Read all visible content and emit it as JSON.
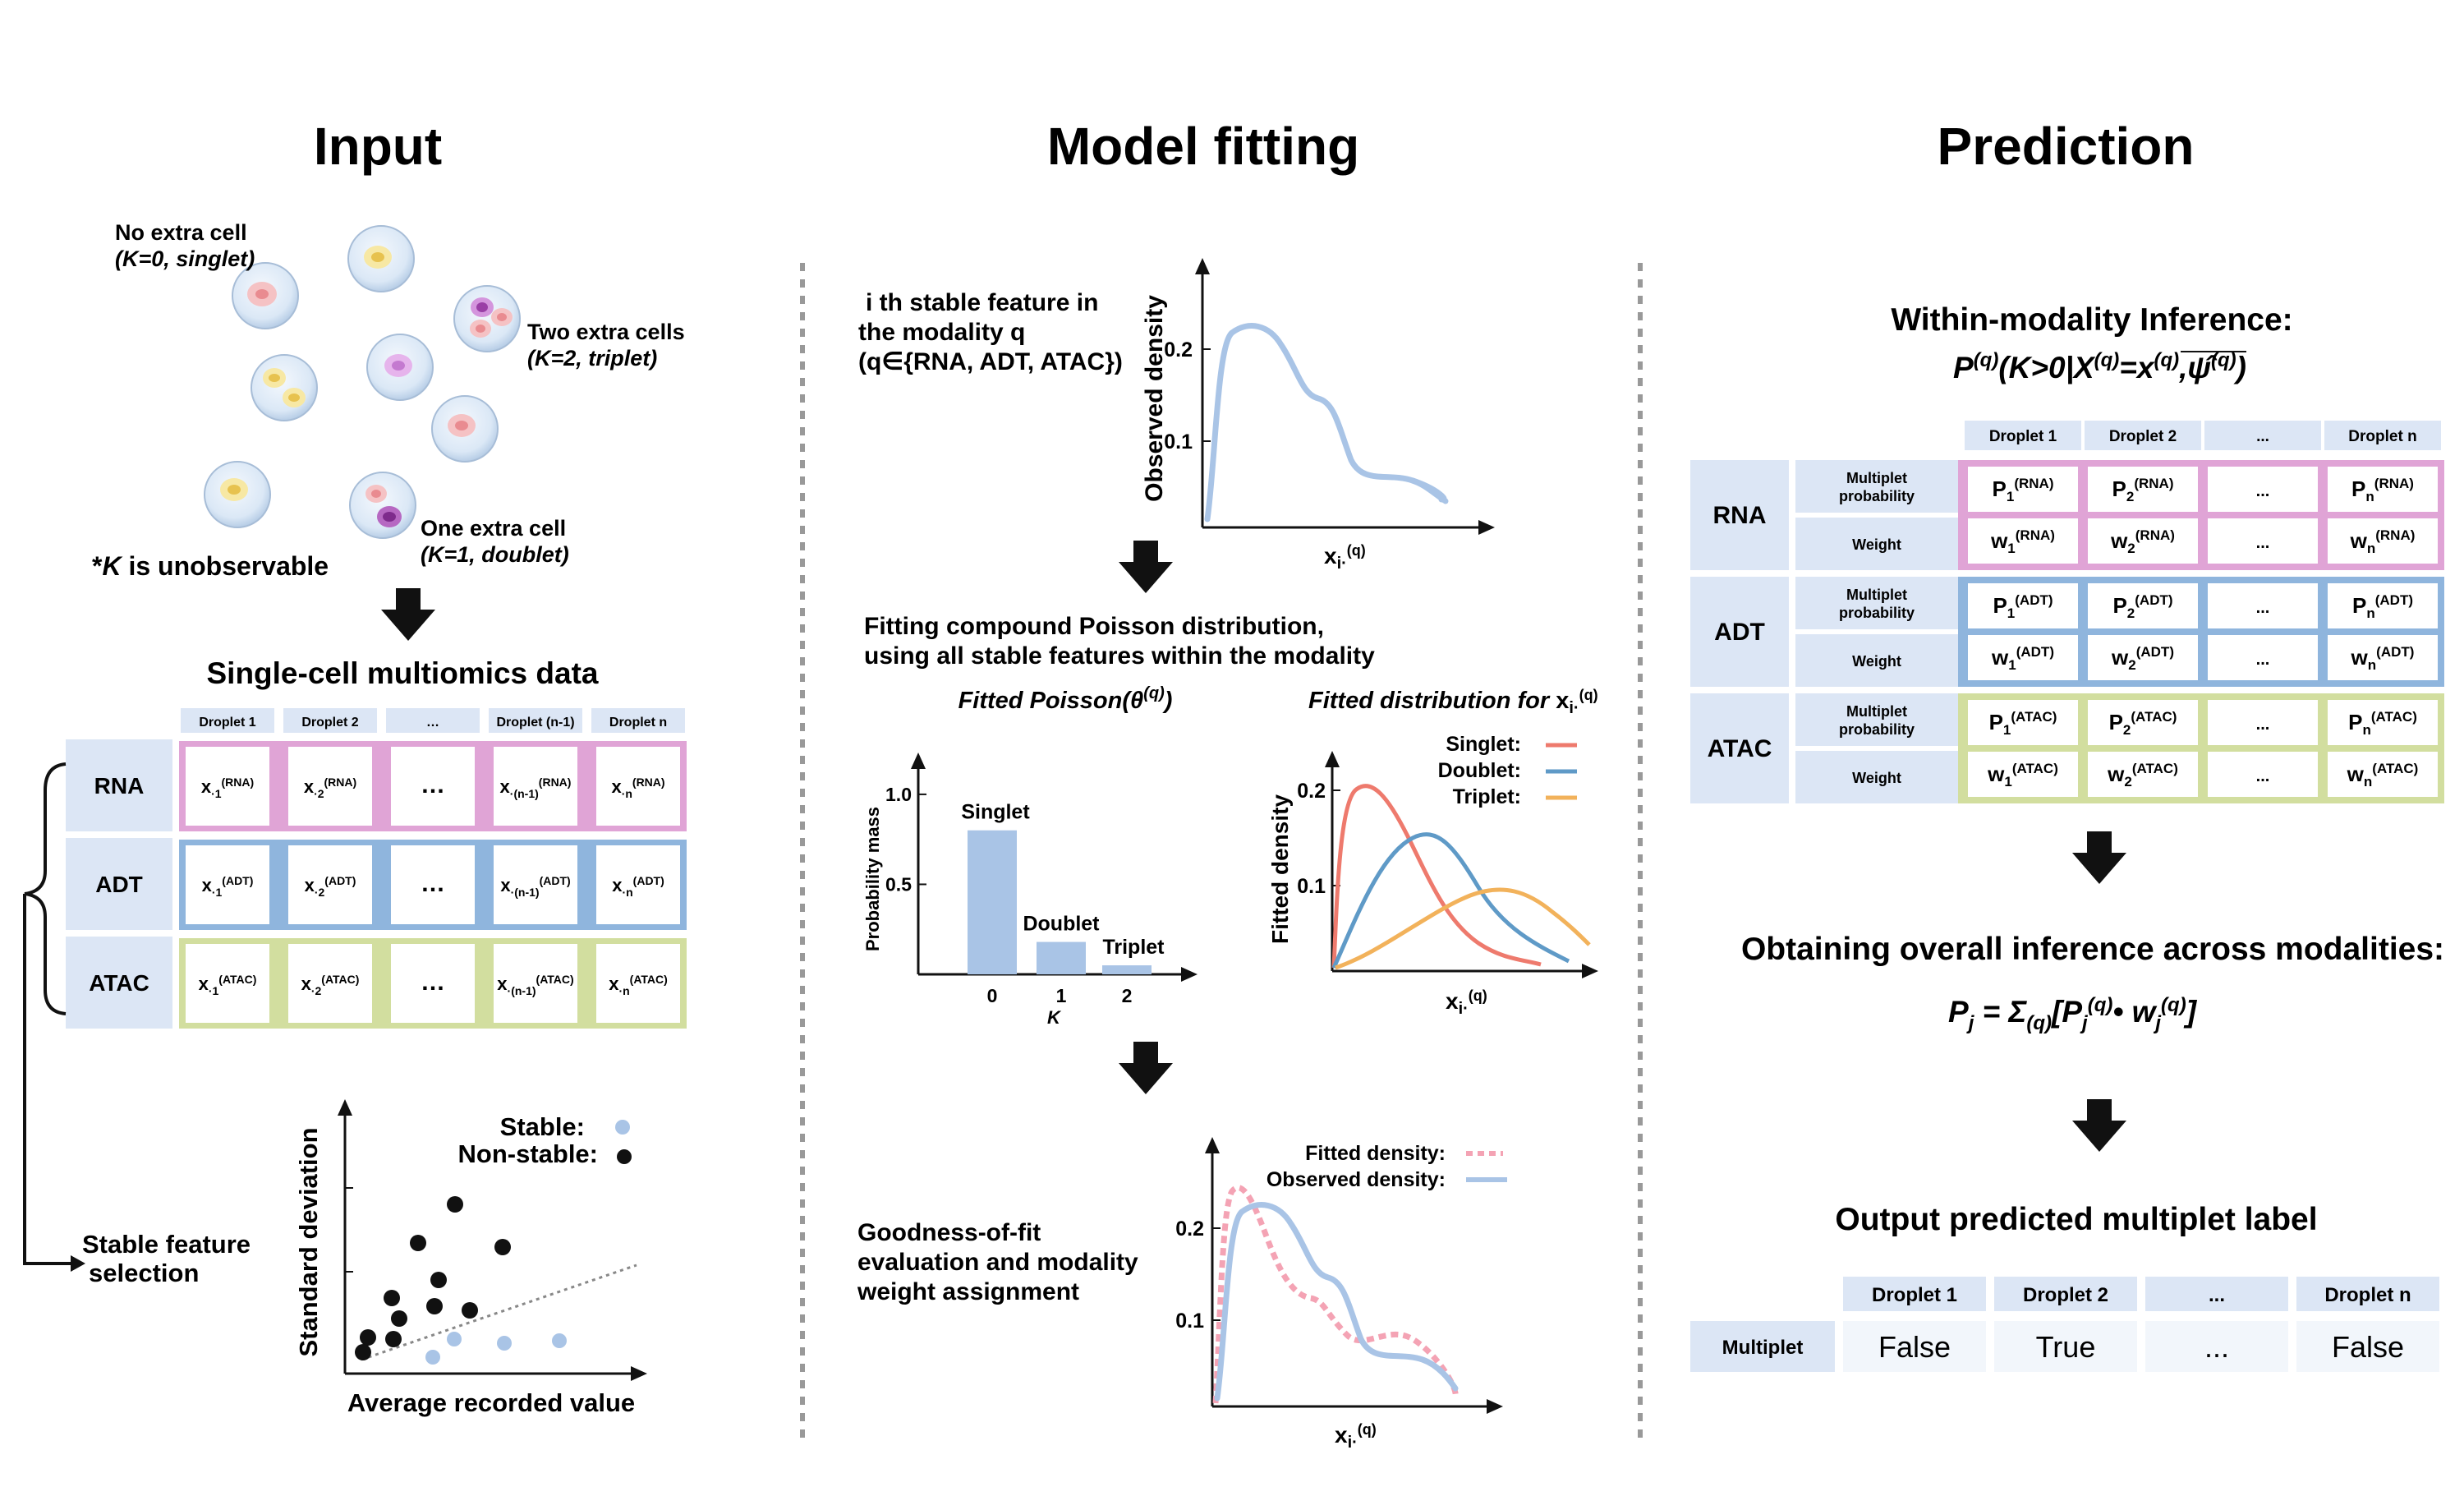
{
  "colors": {
    "rna": "#e0a4d6",
    "adt": "#8fb5dd",
    "atac": "#d2de9f",
    "header_cell": "#dce6f5",
    "bar": "#a9c4e6",
    "singlet": "#ee7a6d",
    "doublet": "#5f9ac7",
    "triplet": "#f2b25b",
    "observed": "#a9c4e6",
    "fitted": "#f4a3b4",
    "stable": "#a9c4e6",
    "nonstable": "#111111"
  },
  "input": {
    "title": "Input",
    "cells": {
      "no_extra": "No extra cell",
      "no_extra_k": "(K=0, singlet)",
      "two_extra": "Two extra cells",
      "two_extra_k": "(K=2, triplet)",
      "one_extra": "One extra cell",
      "one_extra_k": "(K=1, doublet)",
      "unobservable_star": "*",
      "unobservable_k": "K",
      "unobservable_text": " is unobservable"
    },
    "multiomics_title": "Single-cell multiomics data",
    "droplets": [
      "Droplet 1",
      "Droplet 2",
      "…",
      "Droplet (n-1)",
      "Droplet n"
    ],
    "rows": [
      {
        "label": "RNA",
        "sup": "(RNA)"
      },
      {
        "label": "ADT",
        "sup": "(ADT)"
      },
      {
        "label": "ATAC",
        "sup": "(ATAC)"
      }
    ],
    "cell_subs": [
      "·1",
      "·2",
      "…",
      "·(n-1)",
      "·n"
    ],
    "stable_feature": "Stable feature",
    "selection": "selection",
    "scatter": {
      "legend_stable": "Stable:",
      "legend_nonstable": "Non-stable:",
      "ylabel": "Standard deviation",
      "xlabel": "Average recorded value"
    }
  },
  "model": {
    "title": "Model fitting",
    "feature_text_1": "i th stable feature in",
    "feature_text_2": "the modality q",
    "feature_text_3": "(q∈{RNA, ADT, ATAC})",
    "observed_ylabel": "Observed density",
    "observed_ticks": [
      "0.2",
      "0.1"
    ],
    "x_label": "x",
    "x_sub": "i·",
    "x_sup": "(q)",
    "fitting_text_1": "Fitting compound Poisson distribution,",
    "fitting_text_2": "using all stable features within the modality",
    "poisson_title_pre": "Fitted Poisson(θ",
    "poisson_title_sup": "(q)",
    "poisson_title_post": ")",
    "dist_title_pre": "Fitted distribution for ",
    "prob_ylabel": "Probability mass",
    "prob_ticks": [
      "1.0",
      "0.5"
    ],
    "k_label": "K",
    "fitted_ylabel": "Fitted density",
    "fitted_ticks": [
      "0.2",
      "0.1"
    ],
    "legend_singlet": "Singlet:",
    "legend_doublet": "Doublet:",
    "legend_triplet": "Triplet:",
    "gof_1": "Goodness-of-fit",
    "gof_2": "evaluation and modality",
    "gof_3": "weight assignment",
    "legend_fitted": "Fitted density:",
    "legend_observed": "Observed density:",
    "gof_ticks": [
      "0.2",
      "0.1"
    ]
  },
  "chart_data": [
    {
      "type": "bar",
      "categories": [
        "0",
        "1",
        "2"
      ],
      "values": [
        0.8,
        0.18,
        0.05
      ],
      "labels": [
        "Singlet",
        "Doublet",
        "Triplet"
      ],
      "title": "Fitted Poisson(θ(q))",
      "xlabel": "K",
      "ylabel": "Probability mass",
      "ylim": [
        0,
        1.1
      ]
    }
  ],
  "prediction": {
    "title": "Prediction",
    "within_title": "Within-modality Inference:",
    "droplets": [
      "Droplet 1",
      "Droplet 2",
      "...",
      "Droplet n"
    ],
    "multiplet_probability_1": "Multiplet",
    "multiplet_probability_2": "probability",
    "weight": "Weight",
    "mods": [
      {
        "label": "RNA",
        "sup": "(RNA)"
      },
      {
        "label": "ADT",
        "sup": "(ADT)"
      },
      {
        "label": "ATAC",
        "sup": "(ATAC)"
      }
    ],
    "p_letter": "P",
    "w_letter": "w",
    "subs": [
      "1",
      "2",
      "...",
      "n"
    ],
    "overall_title": "Obtaining overall inference across modalities:",
    "output_title": "Output predicted multiplet label",
    "output_droplets": [
      "Droplet 1",
      "Droplet 2",
      "...",
      "Droplet n"
    ],
    "multiplet_label": "Multiplet",
    "output_values": [
      "False",
      "True",
      "...",
      "False"
    ]
  }
}
